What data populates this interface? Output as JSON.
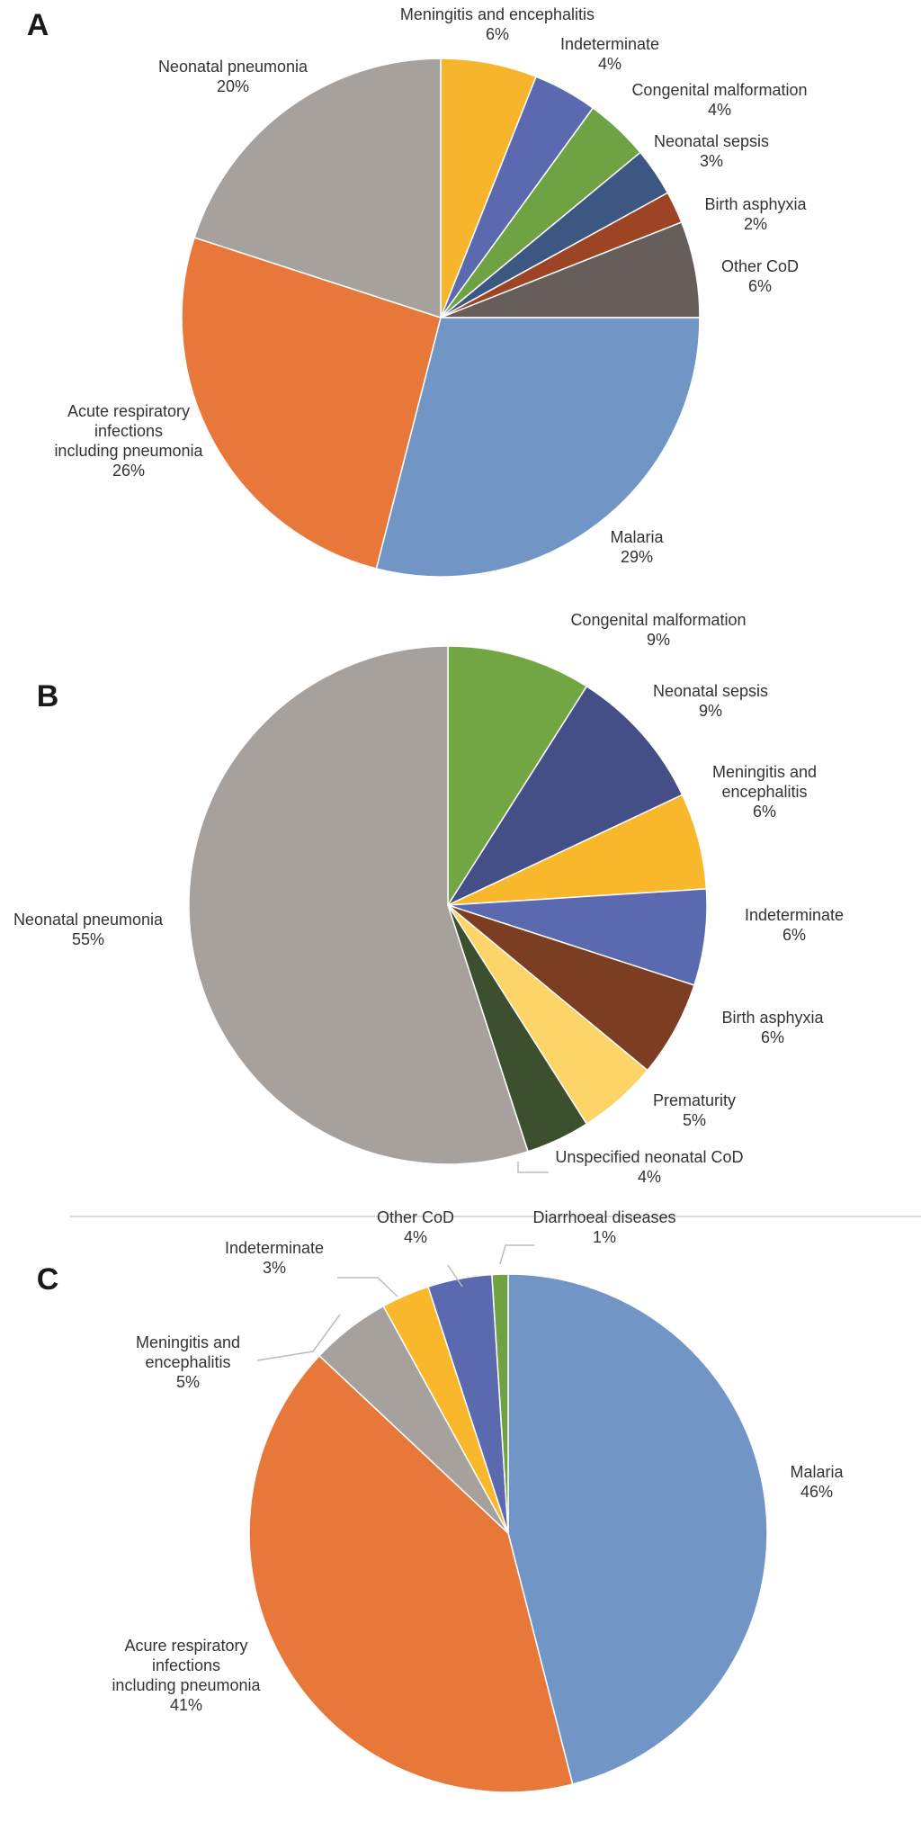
{
  "chart_data": [
    {
      "panel": "A",
      "type": "pie",
      "title": "",
      "slices": [
        {
          "label": "Meningitis and encephalitis",
          "value": 6,
          "display": "6%",
          "color": "#F7B52C"
        },
        {
          "label": "Indeterminate",
          "value": 4,
          "display": "4%",
          "color": "#5B6AAE"
        },
        {
          "label": "Congenital malformation",
          "value": 4,
          "display": "4%",
          "color": "#6FA243"
        },
        {
          "label": "Neonatal sepsis",
          "value": 3,
          "display": "3%",
          "color": "#3D5783"
        },
        {
          "label": "Birth asphyxia",
          "value": 2,
          "display": "2%",
          "color": "#9C4424"
        },
        {
          "label": "Other CoD",
          "value": 6,
          "display": "6%",
          "color": "#655E5A"
        },
        {
          "label": "Malaria",
          "value": 29,
          "display": "29%",
          "color": "#7196C6"
        },
        {
          "label": "Acute respiratory infections including pneumonia",
          "value": 26,
          "display": "26%",
          "color": "#E8773A"
        },
        {
          "label": "Neonatal pneumonia",
          "value": 20,
          "display": "20%",
          "color": "#A7A19E"
        }
      ]
    },
    {
      "panel": "B",
      "type": "pie",
      "title": "",
      "slices": [
        {
          "label": "Congenital malformation",
          "value": 9,
          "display": "9%",
          "color": "#72A643"
        },
        {
          "label": "Neonatal sepsis",
          "value": 9,
          "display": "9%",
          "color": "#434F86"
        },
        {
          "label": "Meningitis and encephalitis",
          "value": 6,
          "display": "6%",
          "color": "#F9B72B"
        },
        {
          "label": "Indeterminate",
          "value": 6,
          "display": "6%",
          "color": "#5B6AAE"
        },
        {
          "label": "Birth asphyxia",
          "value": 6,
          "display": "6%",
          "color": "#7C3E23"
        },
        {
          "label": "Prematurity",
          "value": 5,
          "display": "5%",
          "color": "#FDD468"
        },
        {
          "label": "Unspecified neonatal CoD",
          "value": 4,
          "display": "4%",
          "color": "#3C4F2E"
        },
        {
          "label": "Neonatal pneumonia",
          "value": 55,
          "display": "55%",
          "color": "#A7A19E"
        }
      ]
    },
    {
      "panel": "C",
      "type": "pie",
      "title": "",
      "slices": [
        {
          "label": "Malaria",
          "value": 46,
          "display": "46%",
          "color": "#7196C6"
        },
        {
          "label": "Acure respiratory infections including pneumonia",
          "value": 41,
          "display": "41%",
          "color": "#E8773A"
        },
        {
          "label": "Meningitis and encephalitis",
          "value": 5,
          "display": "5%",
          "color": "#A7A19E"
        },
        {
          "label": "Indeterminate",
          "value": 3,
          "display": "3%",
          "color": "#F9B72B"
        },
        {
          "label": "Other CoD",
          "value": 4,
          "display": "4%",
          "color": "#5B6AAE"
        },
        {
          "label": "Diarrhoeal diseases",
          "value": 1,
          "display": "1%",
          "color": "#6FA243"
        }
      ]
    }
  ]
}
